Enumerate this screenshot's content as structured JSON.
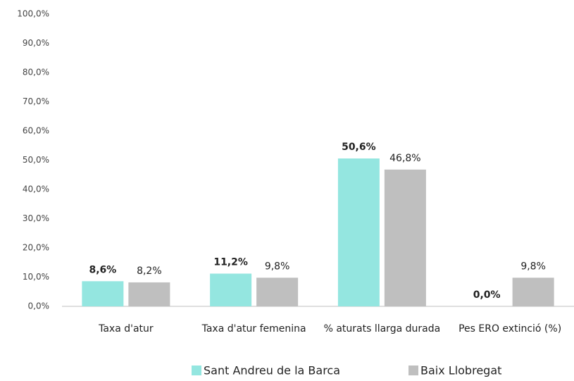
{
  "chart_data": {
    "type": "bar",
    "categories": [
      "Taxa d'atur",
      "Taxa d'atur femenina",
      "% aturats llarga durada",
      "Pes ERO extinció (%)"
    ],
    "series": [
      {
        "name": "Sant Andreu de la Barca",
        "color": "#94e6e0",
        "values": [
          8.6,
          11.2,
          50.6,
          0.0
        ],
        "value_labels": [
          "8,6%",
          "11,2%",
          "50,6%",
          "0,0%"
        ],
        "label_bold": true
      },
      {
        "name": "Baix Llobregat",
        "color": "#bfbfbf",
        "values": [
          8.2,
          9.8,
          46.8,
          9.8
        ],
        "value_labels": [
          "8,2%",
          "9,8%",
          "46,8%",
          "9,8%"
        ],
        "label_bold": false
      }
    ],
    "ylim": [
      0,
      100
    ],
    "yticks": [
      {
        "value": 0,
        "label": "0,0%"
      },
      {
        "value": 10,
        "label": "10,0%"
      },
      {
        "value": 20,
        "label": "20,0%"
      },
      {
        "value": 30,
        "label": "30,0%"
      },
      {
        "value": 40,
        "label": "40,0%"
      },
      {
        "value": 50,
        "label": "50,0%"
      },
      {
        "value": 60,
        "label": "60,0%"
      },
      {
        "value": 70,
        "label": "70,0%"
      },
      {
        "value": 80,
        "label": "80,0%"
      },
      {
        "value": 90,
        "label": "90,0%"
      },
      {
        "value": 100,
        "label": "100,0%"
      }
    ],
    "grid": false,
    "legend": "bottom"
  }
}
